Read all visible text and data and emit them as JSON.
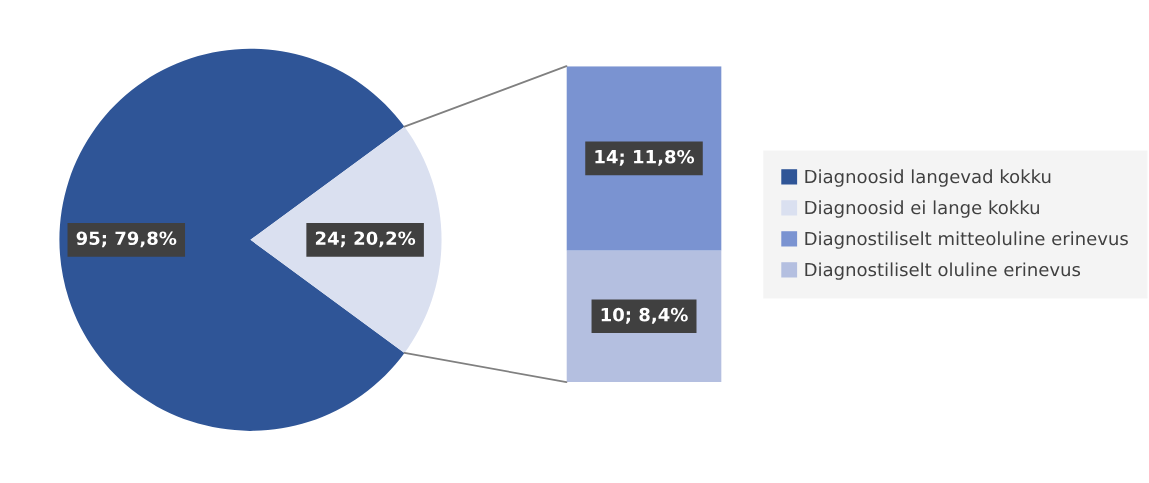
{
  "chart_data": [
    {
      "type": "pie",
      "categories": [
        "Diagnoosid langevad kokku",
        "Diagnoosid ei lange kokku"
      ],
      "values": [
        95,
        24
      ],
      "colors": [
        "#2f5597",
        "#dae0f0"
      ],
      "value_labels": [
        "95; 79,8%",
        "24; 20,2%"
      ],
      "legend": "right"
    },
    {
      "type": "bar",
      "stacked": true,
      "categories": [
        null
      ],
      "legend": "right",
      "series": [
        {
          "name": "Diagnostiliselt oluline erinevus",
          "color": "#b4bfe0",
          "values": [
            10
          ],
          "value_labels": [
            "10; 8,4%"
          ]
        },
        {
          "name": "Diagnostiliselt mitteoluline erinevus",
          "color": "#7a93d1",
          "values": [
            14
          ],
          "value_labels": [
            "14; 11,8%"
          ]
        }
      ]
    }
  ]
}
